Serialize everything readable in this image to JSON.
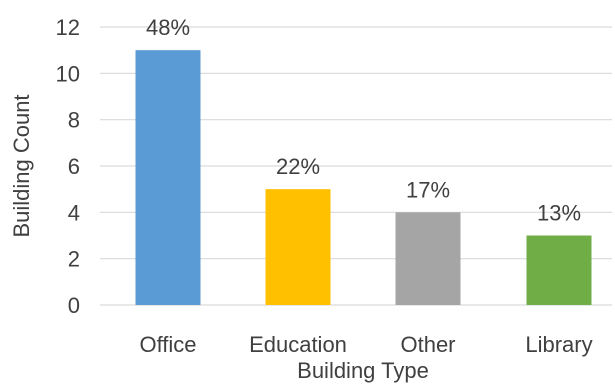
{
  "chart_data": {
    "type": "bar",
    "title": "",
    "xlabel": "Building Type",
    "ylabel": "Building Count",
    "categories": [
      "Office",
      "Education",
      "Other",
      "Library"
    ],
    "values": [
      11,
      5,
      4,
      3
    ],
    "data_labels": [
      "48%",
      "22%",
      "17%",
      "13%"
    ],
    "bar_colors": [
      "#5b9bd5",
      "#ffc000",
      "#a5a5a5",
      "#70ad47"
    ],
    "ylim": [
      0,
      12
    ],
    "yticks": [
      0,
      2,
      4,
      6,
      8,
      10,
      12
    ],
    "grid": true,
    "legend": "none"
  }
}
